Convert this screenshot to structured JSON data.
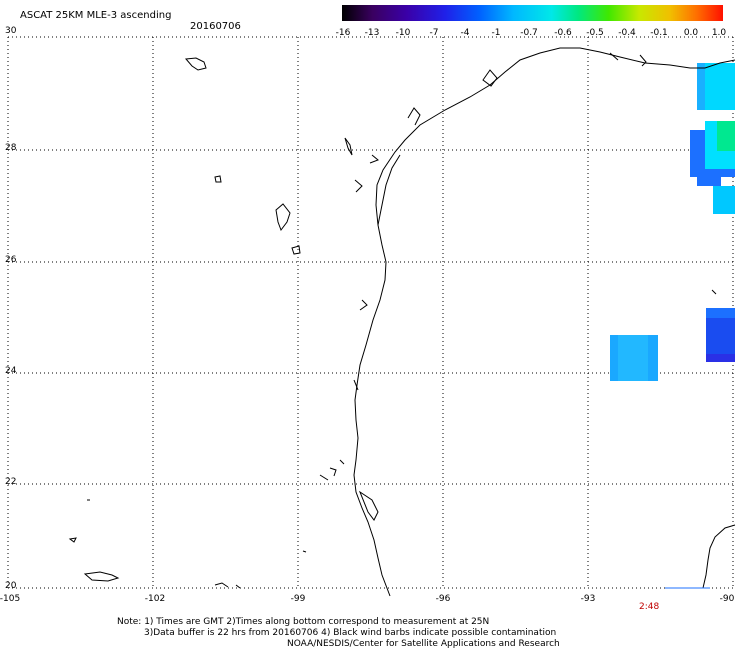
{
  "header": {
    "title": "ASCAT 25KM MLE-3 ascending",
    "date": "20160706"
  },
  "colorbar": {
    "ticks": [
      "-16",
      "-13",
      "-10",
      "-7",
      "-4",
      "-1",
      "-0.7",
      "-0.6",
      "-0.5",
      "-0.4",
      "-0.1",
      "0.0",
      "1.0"
    ]
  },
  "axes": {
    "lat_labels": [
      "30",
      "28",
      "26",
      "24",
      "22",
      "20"
    ],
    "lon_labels": [
      "-105",
      "-102",
      "-99",
      "-96",
      "-93",
      "-90"
    ]
  },
  "time_label": "2:48",
  "notes": {
    "line1": "Note: 1) Times are GMT 2)Times along bottom correspond to measurement at 25N",
    "line2": "3)Data buffer is 22 hrs from 20160706 4) Black wind barbs indicate possible contamination",
    "line3": "NOAA/NESDIS/Center for Satellite Applications and Research"
  },
  "colors": {
    "swath_light": "#1aa8ff",
    "swath_mid": "#1c70ff",
    "swath_deep": "#2a30e6",
    "swath_cyan": "#00e0ff",
    "swath_green": "#00e890",
    "time_label": "#c00000"
  }
}
